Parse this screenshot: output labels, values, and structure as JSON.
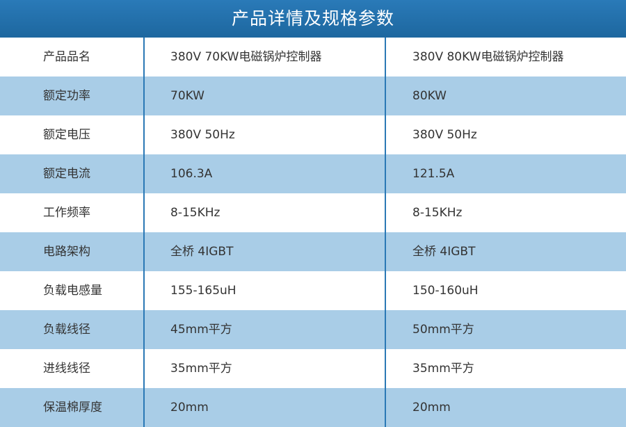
{
  "header": {
    "title": "产品详情及规格参数"
  },
  "table": {
    "rows": [
      [
        "产品品名",
        "380V 70KW电磁锅炉控制器",
        "380V 80KW电磁锅炉控制器"
      ],
      [
        "额定功率",
        "70KW",
        "80KW"
      ],
      [
        "额定电压",
        "380V 50Hz",
        "380V 50Hz"
      ],
      [
        "额定电流",
        "106.3A",
        "121.5A"
      ],
      [
        "工作频率",
        "8-15KHz",
        "8-15KHz"
      ],
      [
        "电路架构",
        "全桥 4IGBT",
        "全桥 4IGBT"
      ],
      [
        "负载电感量",
        "155-165uH",
        "150-160uH"
      ],
      [
        "负载线径",
        "45mm平方",
        "50mm平方"
      ],
      [
        "进线线径",
        "35mm平方",
        "35mm平方"
      ],
      [
        "保温棉厚度",
        "20mm",
        "20mm"
      ]
    ]
  }
}
